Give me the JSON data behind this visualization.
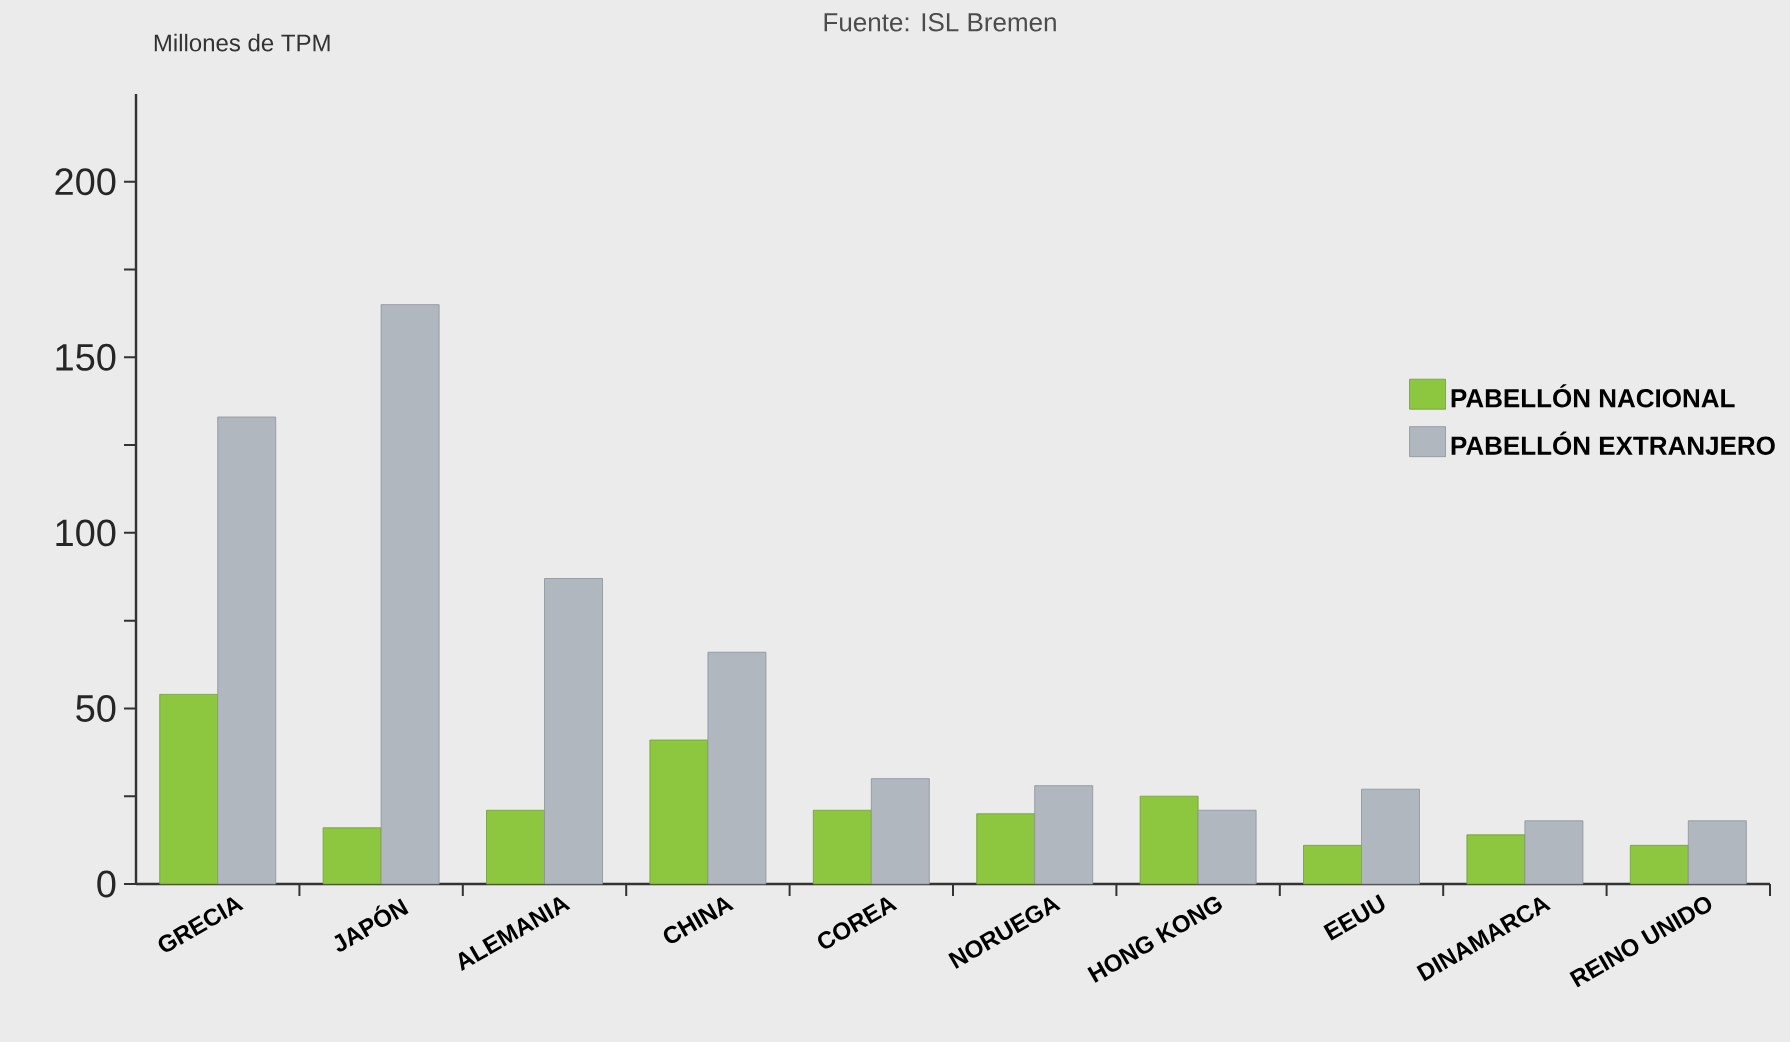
{
  "chart_data": {
    "type": "bar",
    "ylabel": "Millones de TPM",
    "annotations": [
      "Fuente: ISL Bremen"
    ],
    "categories": [
      "GRECIA",
      "JAPÓN",
      "ALEMANIA",
      "CHINA",
      "COREA",
      "NORUEGA",
      "HONG KONG",
      "EEUU",
      "DINAMARCA",
      "REINO UNIDO"
    ],
    "series": [
      {
        "name": "PABELLÓN NACIONAL",
        "color": "#8dc63f",
        "values": [
          54,
          16,
          21,
          41,
          21,
          20,
          25,
          11,
          14,
          11
        ]
      },
      {
        "name": "PABELLÓN EXTRANJERO",
        "color": "#b0b7bf",
        "values": [
          133,
          165,
          87,
          66,
          30,
          28,
          21,
          27,
          18,
          18
        ]
      }
    ],
    "ylim": [
      0,
      225
    ],
    "yticks": [
      0,
      {
        "value": 25,
        "label": null
      },
      50,
      {
        "value": 75,
        "label": null
      },
      100,
      {
        "value": 125,
        "label": null
      },
      150,
      {
        "value": 175,
        "label": null
      },
      200
    ],
    "legend": "right"
  }
}
